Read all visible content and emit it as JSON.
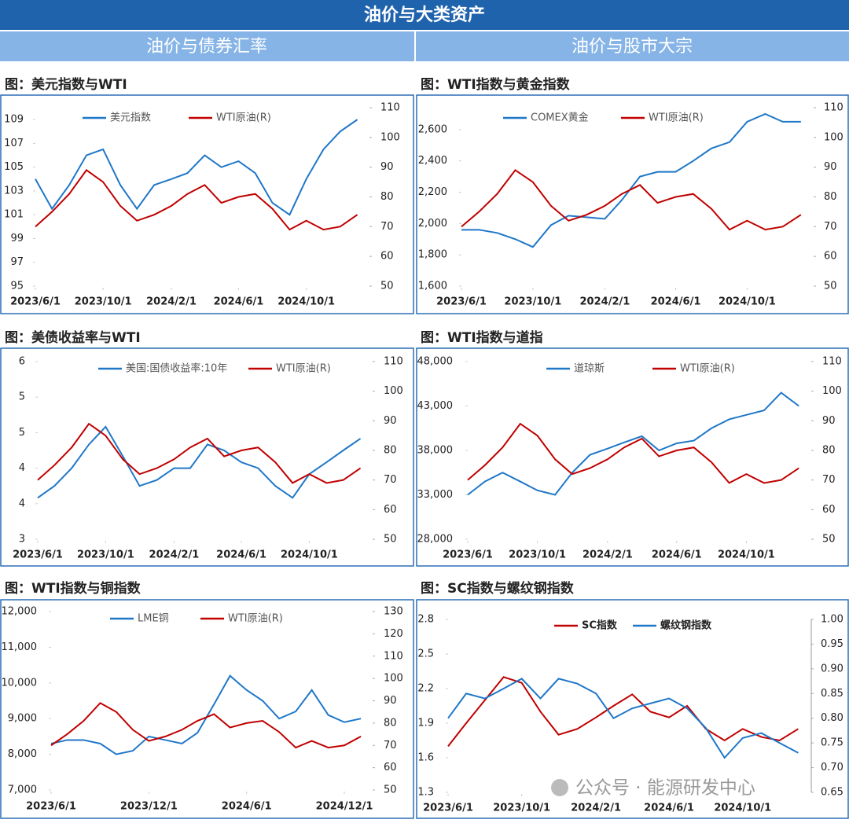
{
  "header": {
    "title": "油价与大类资产",
    "sections": [
      "油价与债券汇率",
      "油价与股市大宗"
    ]
  },
  "watermark": "公众号 · 能源研发中心",
  "chart_data": [
    {
      "type": "line",
      "title": "图：美元指数与WTI",
      "x": [
        "2023/6/1",
        "2023/7/1",
        "2023/8/1",
        "2023/9/1",
        "2023/10/1",
        "2023/11/1",
        "2023/12/1",
        "2024/1/1",
        "2024/2/1",
        "2024/3/1",
        "2024/4/1",
        "2024/5/1",
        "2024/6/1",
        "2024/7/1",
        "2024/8/1",
        "2024/9/1",
        "2024/10/1",
        "2024/11/1",
        "2024/12/1",
        "2025/1/1"
      ],
      "xlim": [
        "2023/6/1",
        "2025/1/20"
      ],
      "xticks": [
        "2023/6/1",
        "2023/10/1",
        "2024/2/1",
        "2024/6/1",
        "2024/10/1"
      ],
      "ylim": [
        95,
        110
      ],
      "yticks": [
        95,
        97,
        99,
        101,
        103,
        105,
        107,
        109
      ],
      "y2lim": [
        50,
        110
      ],
      "y2ticks": [
        50,
        60,
        70,
        80,
        90,
        100,
        110
      ],
      "legend": "top",
      "series": [
        {
          "name": "美元指数",
          "color": "#1f77c8",
          "values": [
            104,
            101.5,
            103.5,
            106,
            106.5,
            103.5,
            101.5,
            103.5,
            104,
            104.5,
            106,
            105,
            105.5,
            104.5,
            102,
            101,
            104,
            106.5,
            108,
            109
          ]
        },
        {
          "name": "WTI原油(R)",
          "color": "#c00000",
          "axis": "y2",
          "values": [
            70,
            75,
            81,
            89,
            85,
            77,
            72,
            74,
            77,
            81,
            84,
            78,
            80,
            81,
            76,
            69,
            72,
            69,
            70,
            74
          ]
        }
      ]
    },
    {
      "type": "line",
      "title": "图：WTI指数与黄金指数",
      "x": [
        "2023/6/1",
        "2023/7/1",
        "2023/8/1",
        "2023/9/1",
        "2023/10/1",
        "2023/11/1",
        "2023/12/1",
        "2024/1/1",
        "2024/2/1",
        "2024/3/1",
        "2024/4/1",
        "2024/5/1",
        "2024/6/1",
        "2024/7/1",
        "2024/8/1",
        "2024/9/1",
        "2024/10/1",
        "2024/11/1",
        "2024/12/1",
        "2025/1/1"
      ],
      "xlim": [
        "2023/6/1",
        "2025/1/20"
      ],
      "xticks": [
        "2023/6/1",
        "2023/10/1",
        "2024/2/1",
        "2024/6/1",
        "2024/10/1"
      ],
      "ylim": [
        1600,
        2740
      ],
      "yticks": [
        {
          "value": 1600,
          "label": "1,600"
        },
        {
          "value": 1800,
          "label": "1,800"
        },
        {
          "value": 2000,
          "label": "2,000"
        },
        {
          "value": 2200,
          "label": "2,200"
        },
        {
          "value": 2400,
          "label": "2,400"
        },
        {
          "value": 2600,
          "label": "2,600"
        }
      ],
      "y2lim": [
        50,
        110
      ],
      "y2ticks": [
        50,
        60,
        70,
        80,
        90,
        100,
        110
      ],
      "legend": "top",
      "series": [
        {
          "name": "COMEX黄金",
          "color": "#1f77c8",
          "values": [
            1960,
            1960,
            1940,
            1900,
            1850,
            1990,
            2050,
            2040,
            2030,
            2150,
            2300,
            2330,
            2330,
            2400,
            2480,
            2520,
            2650,
            2700,
            2650,
            2650
          ]
        },
        {
          "name": "WTI原油(R)",
          "color": "#c00000",
          "axis": "y2",
          "values": [
            70,
            75,
            81,
            89,
            85,
            77,
            72,
            74,
            77,
            81,
            84,
            78,
            80,
            81,
            76,
            69,
            72,
            69,
            70,
            74
          ]
        }
      ]
    },
    {
      "type": "line",
      "title": "图：美债收益率与WTI",
      "x": [
        "2023/6/1",
        "2023/7/1",
        "2023/8/1",
        "2023/9/1",
        "2023/10/1",
        "2023/11/1",
        "2023/12/1",
        "2024/1/1",
        "2024/2/1",
        "2024/3/1",
        "2024/4/1",
        "2024/5/1",
        "2024/6/1",
        "2024/7/1",
        "2024/8/1",
        "2024/9/1",
        "2024/10/1",
        "2024/11/1",
        "2024/12/1",
        "2025/1/1"
      ],
      "xlim": [
        "2023/6/1",
        "2025/1/20"
      ],
      "xticks": [
        "2023/6/1",
        "2023/10/1",
        "2024/2/1",
        "2024/6/1",
        "2024/10/1"
      ],
      "ylim": [
        3,
        6
      ],
      "yticks": [
        3,
        {
          "value": 3.6,
          "label": "4"
        },
        {
          "value": 4.2,
          "label": "4"
        },
        {
          "value": 4.8,
          "label": "5"
        },
        {
          "value": 5.4,
          "label": "5"
        },
        6
      ],
      "y2lim": [
        50,
        110
      ],
      "y2ticks": [
        50,
        60,
        70,
        80,
        90,
        100,
        110
      ],
      "legend": "top",
      "series": [
        {
          "name": "美国:国债收益率:10年",
          "color": "#1f77c8",
          "values": [
            3.7,
            3.9,
            4.2,
            4.6,
            4.9,
            4.4,
            3.9,
            4.0,
            4.2,
            4.2,
            4.6,
            4.5,
            4.3,
            4.2,
            3.9,
            3.7,
            4.1,
            4.3,
            4.5,
            4.7
          ]
        },
        {
          "name": "WTI原油(R)",
          "color": "#c00000",
          "axis": "y2",
          "values": [
            70,
            75,
            81,
            89,
            85,
            77,
            72,
            74,
            77,
            81,
            84,
            78,
            80,
            81,
            76,
            69,
            72,
            69,
            70,
            74
          ]
        }
      ]
    },
    {
      "type": "line",
      "title": "图：WTI指数与道指",
      "x": [
        "2023/6/1",
        "2023/7/1",
        "2023/8/1",
        "2023/9/1",
        "2023/10/1",
        "2023/11/1",
        "2023/12/1",
        "2024/1/1",
        "2024/2/1",
        "2024/3/1",
        "2024/4/1",
        "2024/5/1",
        "2024/6/1",
        "2024/7/1",
        "2024/8/1",
        "2024/9/1",
        "2024/10/1",
        "2024/11/1",
        "2024/12/1",
        "2025/1/1"
      ],
      "xlim": [
        "2023/6/1",
        "2025/1/20"
      ],
      "xticks": [
        "2023/6/1",
        "2023/10/1",
        "2024/2/1",
        "2024/6/1",
        "2024/10/1"
      ],
      "ylim": [
        28000,
        48000
      ],
      "yticks": [
        {
          "value": 28000,
          "label": "28,000"
        },
        {
          "value": 33000,
          "label": "33,000"
        },
        {
          "value": 38000,
          "label": "38,000"
        },
        {
          "value": 43000,
          "label": "43,000"
        },
        {
          "value": 48000,
          "label": "48,000"
        }
      ],
      "y2lim": [
        50,
        110
      ],
      "y2ticks": [
        50,
        60,
        70,
        80,
        90,
        100,
        110
      ],
      "legend": "top",
      "series": [
        {
          "name": "道琼斯",
          "color": "#1f77c8",
          "values": [
            33000,
            34500,
            35500,
            34500,
            33500,
            33000,
            35500,
            37500,
            38200,
            38900,
            39600,
            38000,
            38800,
            39100,
            40500,
            41500,
            42000,
            42500,
            44500,
            43000
          ]
        },
        {
          "name": "WTI原油(R)",
          "color": "#c00000",
          "axis": "y2",
          "values": [
            70,
            75,
            81,
            89,
            85,
            77,
            72,
            74,
            77,
            81,
            84,
            78,
            80,
            81,
            76,
            69,
            72,
            69,
            70,
            74
          ]
        }
      ]
    },
    {
      "type": "line",
      "title": "图：WTI指数与铜指数",
      "x": [
        "2023/6/1",
        "2023/7/1",
        "2023/8/1",
        "2023/9/1",
        "2023/10/1",
        "2023/11/1",
        "2023/12/1",
        "2024/1/1",
        "2024/2/1",
        "2024/3/1",
        "2024/4/1",
        "2024/5/1",
        "2024/6/1",
        "2024/7/1",
        "2024/8/1",
        "2024/9/1",
        "2024/10/1",
        "2024/11/1",
        "2024/12/1",
        "2025/1/1"
      ],
      "xlim": [
        "2023/6/1",
        "2025/1/20"
      ],
      "xticks": [
        "2023/6/1",
        "2023/12/1",
        "2024/6/1",
        "2024/12/1"
      ],
      "ylim": [
        7000,
        12000
      ],
      "yticks": [
        {
          "value": 7000,
          "label": "7,000"
        },
        {
          "value": 8000,
          "label": "8,000"
        },
        {
          "value": 9000,
          "label": "9,000"
        },
        {
          "value": 10000,
          "label": "10,000"
        },
        {
          "value": 11000,
          "label": "11,000"
        },
        {
          "value": 12000,
          "label": "12,000"
        }
      ],
      "y2lim": [
        50,
        130
      ],
      "y2ticks": [
        50,
        60,
        70,
        80,
        90,
        100,
        110,
        120,
        130
      ],
      "legend": "top",
      "series": [
        {
          "name": "LME铜",
          "color": "#1f77c8",
          "values": [
            8300,
            8400,
            8400,
            8300,
            8000,
            8100,
            8500,
            8400,
            8300,
            8600,
            9400,
            10200,
            9800,
            9500,
            9000,
            9200,
            9800,
            9100,
            8900,
            9000
          ]
        },
        {
          "name": "WTI原油(R)",
          "color": "#c00000",
          "axis": "y2",
          "values": [
            70,
            75,
            81,
            89,
            85,
            77,
            72,
            74,
            77,
            81,
            84,
            78,
            80,
            81,
            76,
            69,
            72,
            69,
            70,
            74
          ]
        }
      ]
    },
    {
      "type": "line",
      "title": "图：SC指数与螺纹钢指数",
      "x": [
        "2023/6/1",
        "2023/7/1",
        "2023/8/1",
        "2023/9/1",
        "2023/10/1",
        "2023/11/1",
        "2023/12/1",
        "2024/1/1",
        "2024/2/1",
        "2024/3/1",
        "2024/4/1",
        "2024/5/1",
        "2024/6/1",
        "2024/7/1",
        "2024/8/1",
        "2024/9/1",
        "2024/10/1",
        "2024/11/1",
        "2024/12/1",
        "2025/1/1"
      ],
      "xlim": [
        "2023/6/1",
        "2025/1/20"
      ],
      "xticks": [
        "2023/6/1",
        "2023/10/1",
        "2024/2/1",
        "2024/6/1",
        "2024/10/1"
      ],
      "ylim": [
        1.3,
        2.8
      ],
      "yticks": [
        1.3,
        1.6,
        1.9,
        2.2,
        2.5,
        2.8
      ],
      "y2lim": [
        0.65,
        1
      ],
      "y2ticks": [
        0.65,
        {
          "value": 0.7,
          "label": "0.70"
        },
        0.75,
        {
          "value": 0.8,
          "label": "0.80"
        },
        0.85,
        {
          "value": 0.9,
          "label": "0.90"
        },
        0.95,
        {
          "value": 1,
          "label": "1.00"
        }
      ],
      "legend": "top",
      "series": [
        {
          "name": "SC指数",
          "color": "#c00000",
          "values": [
            1.7,
            1.9,
            2.1,
            2.3,
            2.25,
            2.0,
            1.8,
            1.85,
            1.95,
            2.05,
            2.15,
            2.0,
            1.95,
            2.05,
            1.85,
            1.75,
            1.85,
            1.78,
            1.75,
            1.85
          ]
        },
        {
          "name": "螺纹钢指数",
          "color": "#1f77c8",
          "axis": "y2",
          "values": [
            0.8,
            0.85,
            0.84,
            0.86,
            0.88,
            0.84,
            0.88,
            0.87,
            0.85,
            0.8,
            0.82,
            0.83,
            0.84,
            0.82,
            0.78,
            0.72,
            0.76,
            0.77,
            0.75,
            0.73
          ]
        }
      ]
    }
  ]
}
